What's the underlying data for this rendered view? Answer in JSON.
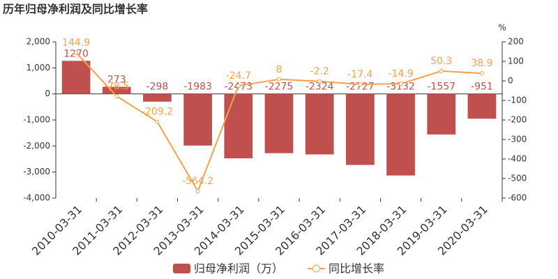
{
  "chart_data": {
    "type": "bar-line",
    "title": "历年归母净利润及同比增长率",
    "y2_label": "%",
    "categories": [
      "2010-03-31",
      "2011-03-31",
      "2012-03-31",
      "2013-03-31",
      "2014-03-31",
      "2015-03-31",
      "2016-03-31",
      "2017-03-31",
      "2018-03-31",
      "2019-03-31",
      "2020-03-31"
    ],
    "series": [
      {
        "name": "归母净利润（万）",
        "type": "bar",
        "color": "#c0504d",
        "values": [
          1270,
          273,
          -298,
          -1983,
          -2473,
          -2275,
          -2324,
          -2727,
          -3132,
          -1557,
          -951
        ]
      },
      {
        "name": "同比增长率",
        "type": "line",
        "axis": "y2",
        "color": "#f5a04a",
        "values": [
          144.9,
          -78.5,
          -209.2,
          -564.2,
          -24.7,
          8,
          -2.2,
          -17.4,
          -14.9,
          50.3,
          38.9
        ]
      }
    ],
    "ylim": [
      -4000,
      2000
    ],
    "yticks": [
      {
        "value": 2000,
        "label": "2,000"
      },
      {
        "value": 1000,
        "label": "1,000"
      },
      0,
      {
        "value": -1000,
        "label": "-1,000"
      },
      {
        "value": -2000,
        "label": "-2,000"
      },
      {
        "value": -3000,
        "label": "-3,000"
      },
      {
        "value": -4000,
        "label": "-4,000"
      }
    ],
    "y2lim": [
      -600,
      200
    ],
    "y2ticks": [
      200,
      100,
      0,
      -100,
      -200,
      -300,
      -400,
      -500,
      -600
    ]
  }
}
